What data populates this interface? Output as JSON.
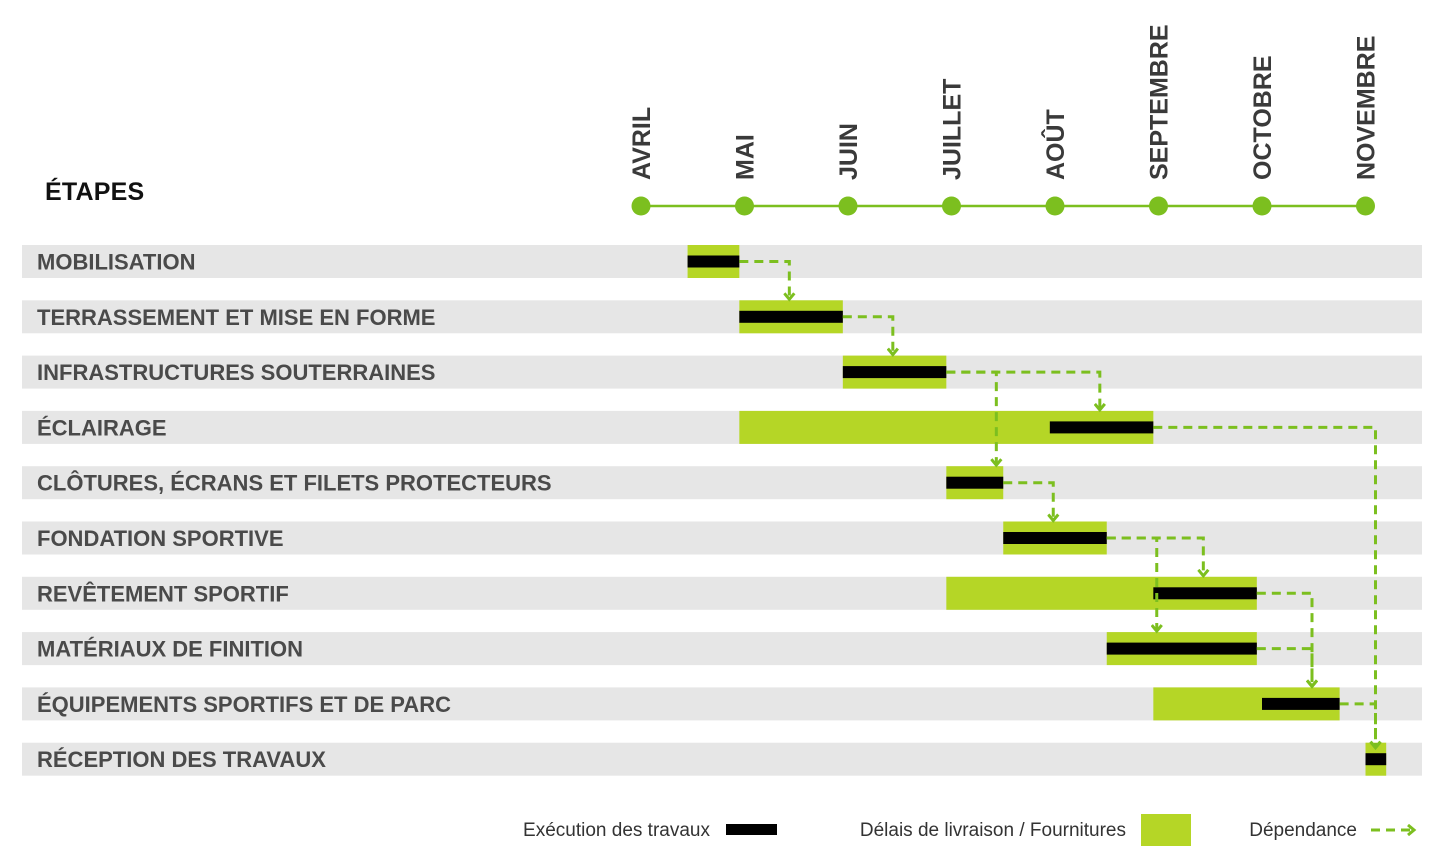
{
  "chart_data": {
    "type": "gantt",
    "title": "ÉTAPES",
    "months": [
      "AVRIL",
      "MAI",
      "JUIN",
      "JUILLET",
      "AOÛT",
      "SEPTEMBRE",
      "OCTOBRE",
      "NOVEMBRE"
    ],
    "tasks": [
      {
        "label": "MOBILISATION",
        "delivery": [
          0.45,
          0.95
        ],
        "execution": [
          0.45,
          0.95
        ]
      },
      {
        "label": "TERRASSEMENT ET MISE EN FORME",
        "delivery": [
          0.95,
          1.95
        ],
        "execution": [
          0.95,
          1.95
        ]
      },
      {
        "label": "INFRASTRUCTURES SOUTERRAINES",
        "delivery": [
          1.95,
          2.95
        ],
        "execution": [
          1.95,
          2.95
        ]
      },
      {
        "label": "ÉCLAIRAGE",
        "delivery": [
          0.95,
          4.95
        ],
        "execution": [
          3.95,
          4.95
        ]
      },
      {
        "label": "CLÔTURES, ÉCRANS ET FILETS PROTECTEURS",
        "delivery": [
          2.95,
          3.5
        ],
        "execution": [
          2.95,
          3.5
        ]
      },
      {
        "label": "FONDATION SPORTIVE",
        "delivery": [
          3.5,
          4.5
        ],
        "execution": [
          3.5,
          4.5
        ]
      },
      {
        "label": "REVÊTEMENT SPORTIF",
        "delivery": [
          2.95,
          5.95
        ],
        "execution": [
          4.95,
          5.95
        ]
      },
      {
        "label": "MATÉRIAUX DE FINITION",
        "delivery": [
          4.5,
          5.95
        ],
        "execution": [
          4.5,
          5.95
        ]
      },
      {
        "label": "ÉQUIPEMENTS SPORTIFS ET DE PARC",
        "delivery": [
          4.95,
          6.75
        ],
        "execution": [
          6.0,
          6.75
        ]
      },
      {
        "label": "RÉCEPTION DES TRAVAUX",
        "delivery": [
          7.0,
          7.2
        ],
        "execution": [
          7.0,
          7.2
        ]
      }
    ],
    "dependencies": [
      [
        0,
        1
      ],
      [
        1,
        2
      ],
      [
        2,
        3
      ],
      [
        2,
        4
      ],
      [
        4,
        5
      ],
      [
        5,
        6
      ],
      [
        5,
        7
      ],
      [
        6,
        8
      ],
      [
        7,
        8
      ],
      [
        8,
        9
      ],
      [
        3,
        9
      ]
    ],
    "legend": {
      "execution": "Exécution des travaux",
      "delivery": "Délais de livraison / Fournitures",
      "dependency": "Dépendance"
    },
    "colors": {
      "delivery": "#b5d626",
      "execution": "#000000",
      "dependency": "#7cbf1f",
      "row_bg": "#e6e6e6",
      "timeline": "#7cbf1f",
      "month_text": "#3a3a3a",
      "label_text": "#4a4a4a"
    }
  }
}
